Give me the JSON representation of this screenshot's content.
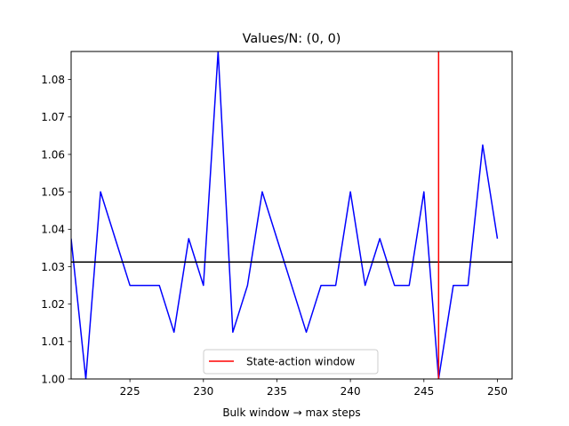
{
  "chart_data": {
    "type": "line",
    "title": "Values/N: (0, 0)",
    "xlabel": "Bulk window → max steps",
    "ylabel": "",
    "xlim": [
      221,
      251
    ],
    "ylim": [
      1.0,
      1.0875
    ],
    "x_ticks": [
      225,
      230,
      235,
      240,
      245,
      250
    ],
    "y_ticks": [
      1.0,
      1.01,
      1.02,
      1.03,
      1.04,
      1.05,
      1.06,
      1.07,
      1.08
    ],
    "x_tick_labels": [
      "225",
      "230",
      "235",
      "240",
      "245",
      "250"
    ],
    "y_tick_labels": [
      "1.00",
      "1.01",
      "1.02",
      "1.03",
      "1.04",
      "1.05",
      "1.06",
      "1.07",
      "1.08"
    ],
    "grid": false,
    "series": [
      {
        "color": "#0000ff",
        "x": [
          221,
          222,
          223,
          224,
          225,
          226,
          227,
          228,
          229,
          230,
          231,
          232,
          233,
          234,
          235,
          236,
          237,
          238,
          239,
          240,
          241,
          242,
          243,
          244,
          245,
          246,
          247,
          248,
          249,
          250
        ],
        "values": [
          1.0375,
          1.0,
          1.05,
          1.0375,
          1.025,
          1.025,
          1.025,
          1.0125,
          1.0375,
          1.025,
          1.0875,
          1.0125,
          1.025,
          1.05,
          1.0375,
          1.025,
          1.0125,
          1.025,
          1.025,
          1.05,
          1.025,
          1.0375,
          1.025,
          1.025,
          1.05,
          1.0,
          1.025,
          1.025,
          1.0625,
          1.0375
        ]
      }
    ],
    "hline": {
      "y": 1.03125,
      "color": "#000000"
    },
    "vline": {
      "x": 246,
      "color": "#ff0000",
      "label": "State-action window"
    },
    "legend": {
      "placement": "lower-center",
      "entries": [
        "State-action window"
      ]
    }
  }
}
